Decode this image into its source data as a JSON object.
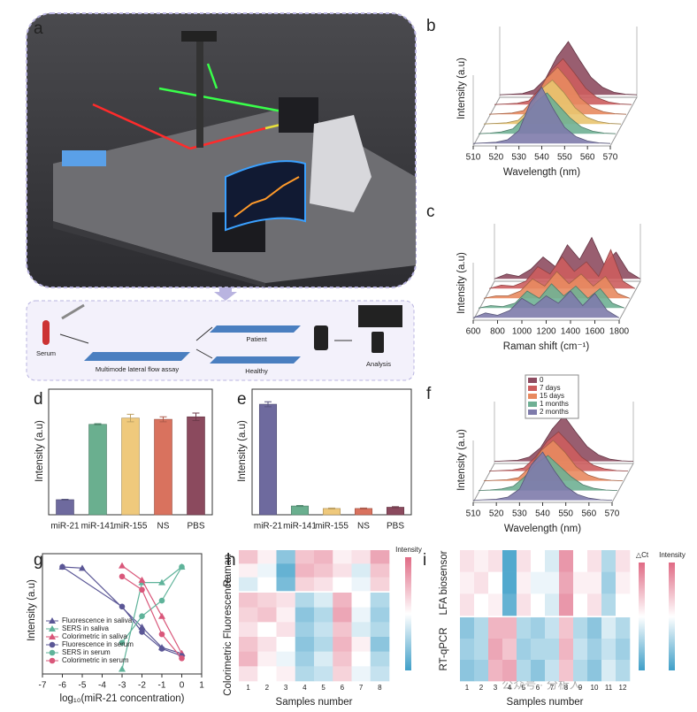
{
  "panel_a": {
    "label": "a"
  },
  "flow": {
    "steps": [
      "Serum",
      "Multimode lateral flow assay",
      "Patient",
      "Healthy",
      "Analysis"
    ]
  },
  "watermark": "公众号 · 分析人",
  "chart_data": [
    {
      "type": "ridgeline",
      "label": "b",
      "xlabel": "Wavelength (nm)",
      "ylabel": "Intensity (a.u)",
      "x": [
        510,
        515,
        520,
        525,
        530,
        535,
        540,
        545,
        550,
        555,
        560,
        565,
        570
      ],
      "xlim": [
        510,
        570
      ],
      "xticks": [
        510,
        520,
        530,
        540,
        550,
        560,
        570
      ],
      "ylim": [
        0,
        1
      ],
      "series": [
        {
          "color": "#7e7bab",
          "values": [
            0.04,
            0.05,
            0.06,
            0.1,
            0.25,
            0.7,
            0.95,
            0.6,
            0.3,
            0.15,
            0.08,
            0.05,
            0.04
          ]
        },
        {
          "color": "#6fb094",
          "values": [
            0.04,
            0.05,
            0.07,
            0.12,
            0.3,
            0.55,
            0.7,
            0.5,
            0.3,
            0.15,
            0.08,
            0.05,
            0.04
          ]
        },
        {
          "color": "#e9c46f",
          "values": [
            0.04,
            0.05,
            0.06,
            0.1,
            0.28,
            0.6,
            0.75,
            0.55,
            0.3,
            0.15,
            0.08,
            0.05,
            0.04
          ]
        },
        {
          "color": "#e8895f",
          "values": [
            0.04,
            0.05,
            0.06,
            0.1,
            0.3,
            0.62,
            0.8,
            0.58,
            0.3,
            0.15,
            0.08,
            0.05,
            0.04
          ]
        },
        {
          "color": "#cc5d5e",
          "values": [
            0.04,
            0.05,
            0.06,
            0.1,
            0.3,
            0.6,
            0.78,
            0.55,
            0.3,
            0.15,
            0.08,
            0.05,
            0.04
          ]
        },
        {
          "color": "#8e4c61",
          "values": [
            0.04,
            0.05,
            0.06,
            0.12,
            0.3,
            0.65,
            0.9,
            0.6,
            0.32,
            0.16,
            0.08,
            0.05,
            0.04
          ]
        }
      ]
    },
    {
      "type": "ridgeline",
      "label": "c",
      "xlabel": "Raman shift (cm⁻¹)",
      "ylabel": "Intensity (a.u)",
      "x": [
        600,
        700,
        800,
        900,
        1000,
        1100,
        1200,
        1300,
        1400,
        1500,
        1600,
        1700,
        1800
      ],
      "xlim": [
        600,
        1800
      ],
      "xticks": [
        600,
        800,
        1000,
        1200,
        1400,
        1600,
        1800
      ],
      "ylim": [
        0,
        1
      ],
      "series": [
        {
          "color": "#7e7bab",
          "values": [
            0.05,
            0.15,
            0.1,
            0.2,
            0.45,
            0.3,
            0.5,
            0.35,
            0.6,
            0.3,
            0.55,
            0.2,
            0.05
          ]
        },
        {
          "color": "#6fb094",
          "values": [
            0.05,
            0.1,
            0.08,
            0.15,
            0.4,
            0.25,
            0.55,
            0.3,
            0.5,
            0.25,
            0.45,
            0.15,
            0.05
          ]
        },
        {
          "color": "#e8895f",
          "values": [
            0.05,
            0.1,
            0.1,
            0.2,
            0.45,
            0.3,
            0.6,
            0.35,
            0.55,
            0.3,
            0.5,
            0.15,
            0.05
          ]
        },
        {
          "color": "#cc5d5e",
          "values": [
            0.05,
            0.12,
            0.1,
            0.2,
            0.5,
            0.35,
            0.7,
            0.4,
            0.6,
            0.3,
            0.85,
            0.2,
            0.05
          ]
        },
        {
          "color": "#8e4c61",
          "values": [
            0.05,
            0.15,
            0.1,
            0.25,
            0.5,
            0.3,
            0.75,
            0.45,
            0.9,
            0.35,
            0.6,
            0.2,
            0.05
          ]
        }
      ]
    },
    {
      "type": "bar",
      "label": "d",
      "ylabel": "Intensity (a.u)",
      "categories": [
        "miR-21",
        "miR-141",
        "miR-155",
        "NS",
        "PBS"
      ],
      "values": [
        0.12,
        0.72,
        0.77,
        0.76,
        0.78
      ],
      "errors": [
        0.003,
        0.005,
        0.03,
        0.02,
        0.03
      ],
      "colors": [
        "#6e6a9e",
        "#6aaf8f",
        "#efc97c",
        "#d9725e",
        "#8b4a5e"
      ],
      "ylim": [
        0,
        1
      ]
    },
    {
      "type": "bar",
      "label": "e",
      "ylabel": "Intensity (a.u)",
      "categories": [
        "miR-21",
        "miR-141",
        "miR-155",
        "NS",
        "PBS"
      ],
      "values": [
        0.88,
        0.07,
        0.05,
        0.05,
        0.06
      ],
      "errors": [
        0.02,
        0.004,
        0.004,
        0.004,
        0.004
      ],
      "colors": [
        "#6e6a9e",
        "#6aaf8f",
        "#efc97c",
        "#d9725e",
        "#8b4a5e"
      ],
      "ylim": [
        0,
        1
      ]
    },
    {
      "type": "ridgeline",
      "label": "f",
      "xlabel": "Wavelength (nm)",
      "ylabel": "Intensity (a.u)",
      "x": [
        510,
        515,
        520,
        525,
        530,
        535,
        540,
        545,
        550,
        555,
        560,
        565,
        570
      ],
      "xlim": [
        510,
        570
      ],
      "xticks": [
        510,
        520,
        530,
        540,
        550,
        560,
        570
      ],
      "ylim": [
        0,
        1
      ],
      "series": [
        {
          "name": "2 months",
          "color": "#7e7bab",
          "values": [
            0.04,
            0.05,
            0.06,
            0.1,
            0.25,
            0.7,
            0.95,
            0.6,
            0.3,
            0.15,
            0.08,
            0.05,
            0.04
          ]
        },
        {
          "name": "1 months",
          "color": "#6fb094",
          "values": [
            0.04,
            0.05,
            0.07,
            0.12,
            0.3,
            0.55,
            0.7,
            0.5,
            0.3,
            0.15,
            0.08,
            0.05,
            0.04
          ]
        },
        {
          "name": "15 days",
          "color": "#e8895f",
          "values": [
            0.04,
            0.05,
            0.06,
            0.1,
            0.3,
            0.62,
            0.8,
            0.58,
            0.3,
            0.15,
            0.08,
            0.05,
            0.04
          ]
        },
        {
          "name": "7 days",
          "color": "#cc5d5e",
          "values": [
            0.04,
            0.05,
            0.06,
            0.1,
            0.3,
            0.6,
            0.78,
            0.55,
            0.3,
            0.15,
            0.08,
            0.05,
            0.04
          ]
        },
        {
          "name": "0",
          "color": "#8e4c61",
          "values": [
            0.04,
            0.05,
            0.06,
            0.12,
            0.3,
            0.65,
            0.9,
            0.6,
            0.32,
            0.16,
            0.08,
            0.05,
            0.04
          ]
        }
      ]
    },
    {
      "type": "line",
      "label": "g",
      "xlabel": "log₁₀(miR-21 concentration)",
      "ylabel": "Intensity (a.u)",
      "xlim": [
        -7,
        1
      ],
      "xticks": [
        -7,
        -6,
        -5,
        -4,
        -3,
        -2,
        -1,
        0,
        1
      ],
      "ylim": [
        0,
        1
      ],
      "legend": "lower left",
      "series": [
        {
          "name": "Fluorescence in saliva",
          "color": "#5b5796",
          "marker": "triangle",
          "x": [
            -6,
            -5,
            -2,
            -1,
            0
          ],
          "values": [
            0.89,
            0.88,
            0.39,
            0.22,
            0.17
          ]
        },
        {
          "name": "SERS in saliva",
          "color": "#5fb39a",
          "marker": "triangle",
          "x": [
            -3,
            -2,
            -1,
            0
          ],
          "values": [
            0.04,
            0.76,
            0.76,
            0.89
          ]
        },
        {
          "name": "Colorimetric in saliva",
          "color": "#d9577a",
          "marker": "triangle",
          "x": [
            -3,
            -2,
            -1,
            0
          ],
          "values": [
            0.9,
            0.78,
            0.48,
            0.17
          ]
        },
        {
          "name": "Fluorescence in serum",
          "color": "#5b5796",
          "marker": "circle",
          "x": [
            -6,
            -3,
            -2,
            -1,
            0
          ],
          "values": [
            0.89,
            0.56,
            0.35,
            0.21,
            0.15
          ]
        },
        {
          "name": "SERS in serum",
          "color": "#5fb39a",
          "marker": "circle",
          "x": [
            -3,
            -2,
            -1,
            0
          ],
          "values": [
            0.26,
            0.48,
            0.61,
            0.89
          ]
        },
        {
          "name": "Colorimetric in serum",
          "color": "#d9577a",
          "marker": "circle",
          "x": [
            -3,
            -2,
            -1,
            0
          ],
          "values": [
            0.81,
            0.7,
            0.33,
            0.13
          ]
        }
      ]
    },
    {
      "type": "heatmap",
      "label": "h",
      "xlabel": "Samples number",
      "categories": [
        1,
        2,
        3,
        4,
        5,
        6,
        7,
        8
      ],
      "colorbars": [
        {
          "title": "Intensity"
        }
      ],
      "blocks": [
        {
          "name": "Raman",
          "values": [
            [
              0.7,
              0.55,
              0.2,
              0.7,
              0.75,
              0.55,
              0.6,
              0.8
            ],
            [
              0.55,
              0.45,
              0.1,
              0.75,
              0.7,
              0.6,
              0.4,
              0.7
            ],
            [
              0.4,
              0.5,
              0.15,
              0.65,
              0.6,
              0.5,
              0.45,
              0.65
            ]
          ]
        },
        {
          "name": "Colorimetric Fluorescence",
          "values": [
            [
              0.7,
              0.65,
              0.6,
              0.3,
              0.4,
              0.75,
              0.5,
              0.3
            ],
            [
              0.65,
              0.7,
              0.55,
              0.2,
              0.3,
              0.8,
              0.45,
              0.25
            ],
            [
              0.6,
              0.5,
              0.6,
              0.25,
              0.35,
              0.7,
              0.4,
              0.3
            ],
            [
              0.7,
              0.6,
              0.5,
              0.2,
              0.3,
              0.75,
              0.55,
              0.2
            ],
            [
              0.75,
              0.55,
              0.45,
              0.25,
              0.4,
              0.7,
              0.5,
              0.3
            ],
            [
              0.6,
              0.5,
              0.55,
              0.3,
              0.35,
              0.65,
              0.45,
              0.35
            ]
          ]
        }
      ]
    },
    {
      "type": "heatmap",
      "label": "i",
      "xlabel": "Samples number",
      "categories": [
        1,
        2,
        3,
        4,
        5,
        6,
        7,
        8,
        9,
        10,
        11,
        12
      ],
      "colorbars": [
        {
          "title": "△Ct"
        },
        {
          "title": "Intensity"
        }
      ],
      "blocks": [
        {
          "name": "LFA biosensor",
          "values": [
            [
              0.6,
              0.55,
              0.6,
              0.05,
              0.6,
              0.5,
              0.4,
              0.85,
              0.5,
              0.6,
              0.3,
              0.6
            ],
            [
              0.55,
              0.6,
              0.5,
              0.05,
              0.55,
              0.45,
              0.45,
              0.8,
              0.55,
              0.55,
              0.25,
              0.55
            ],
            [
              0.6,
              0.5,
              0.55,
              0.1,
              0.6,
              0.5,
              0.4,
              0.85,
              0.5,
              0.6,
              0.3,
              0.5
            ]
          ]
        },
        {
          "name": "RT-qPCR",
          "values": [
            [
              0.2,
              0.3,
              0.75,
              0.75,
              0.3,
              0.25,
              0.35,
              0.7,
              0.3,
              0.2,
              0.4,
              0.3
            ],
            [
              0.25,
              0.3,
              0.8,
              0.7,
              0.25,
              0.3,
              0.3,
              0.75,
              0.35,
              0.25,
              0.35,
              0.25
            ],
            [
              0.2,
              0.25,
              0.75,
              0.8,
              0.3,
              0.2,
              0.35,
              0.7,
              0.3,
              0.2,
              0.4,
              0.3
            ]
          ]
        }
      ]
    }
  ]
}
